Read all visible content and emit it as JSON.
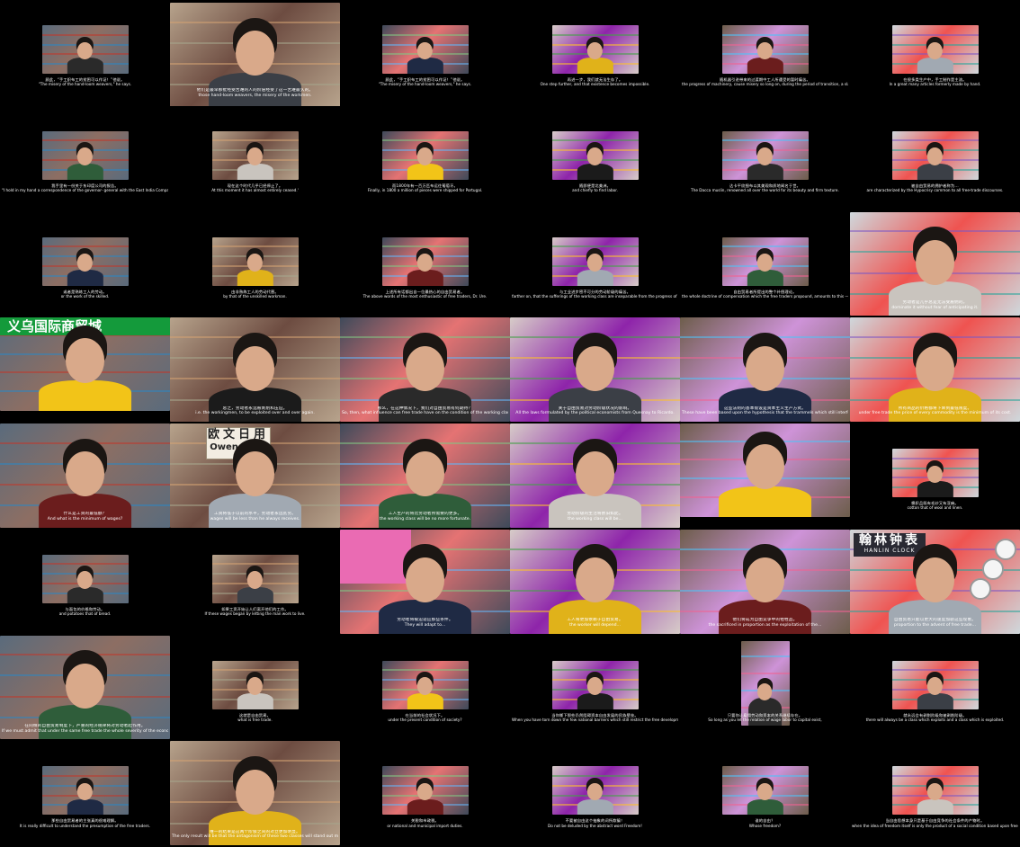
{
  "title": "",
  "cells": [
    {
      "zh": "顾此，“手工织布工的贫困可以作证！”他说。",
      "en": "\"The misery of the hand-loom weavers,\" he says."
    },
    {
      "zh": "他们是最早那批经受苦难的人的阶层经受了这一苦难最久的。",
      "en": "those hand-loom weavers, the misery of the workmen."
    },
    {
      "zh": "顾此，“手工织布工的贫困可以作证！”他说。",
      "en": "\"The misery of the hand-loom weavers,\" he says."
    },
    {
      "zh": "再进一步，我们就无法生存了。",
      "en": "One step further, and that existence becomes impossible."
    },
    {
      "zh": "随机器引进带来的过渡期中工人所遭受的暂时痛苦。",
      "en": "the progress of machinery, cause misery so long on, during the period of transition, a slave of temporary suffering."
    },
    {
      "zh": "在很多类生产中，手工制作是主流。",
      "en": "In a great many articles formerly made by hand."
    },
    {
      "zh": "我手里有一份关于东印度公司的报告。",
      "en": "\"I hold in my hand a correspondence of the governor- general with the East India Company."
    },
    {
      "zh": "现在这个时代几乎已经停止了。",
      "en": "At this moment it has almost entirely ceased.'"
    },
    {
      "zh": "而1800年有一百万匹布运往葡萄牙。",
      "en": "Finally, in 1800 a million of pieces were shipped for Portugal."
    },
    {
      "zh": "随即便是北美洲。",
      "en": "and chiefly to find labor."
    },
    {
      "zh": "达卡平纹细布以其美观和质地闻名于世。",
      "en": "The Dacca muslin, renowned all over the world for its beauty and firm texture."
    },
    {
      "zh": "被自由贸易的拥护者称为...",
      "en": "are characterized by the Hypocrisy common to all free-trade discourses."
    },
    {
      "zh": "或者是熟练工人的劳动。",
      "en": "or the work of the skilled."
    },
    {
      "zh": "由非熟练工人的劳动代替。",
      "en": "by that of the unskilled workman."
    },
    {
      "zh": "上述所有话都出自一位最热心的自由贸易者。",
      "en": "The above words of the most enthusiastic of free traders, Dr. Ure."
    },
    {
      "zh": "与工业进步密不可分的劳动阶级的痛苦。",
      "en": "farther on, that the sufferings of the working class are inseparable from the progress of industry."
    },
    {
      "zh": "自由贸易者所提出的整个补偿理论。",
      "en": "the whole doctrine of compensation which the free traders propound, amounts to this —"
    },
    {
      "zh": "劳动者是几乎总是无法受雇佣的。",
      "en": "dominate it without fear of anticipating it."
    },
    {
      "zh": "",
      "en": ""
    },
    {
      "zh": "总之，劳动者永远被剥削和压迫。",
      "en": "i.e. the workingmen, to be exploited over and over again."
    },
    {
      "zh": "那么，在这种情况下，我们对自由贸易有何期待？",
      "en": "So, then, what influence can free trade have on the condition of the working class?"
    },
    {
      "zh": "关于自由贸易对劳动阶级状况的影响。",
      "en": "All the laws formulated by the political economists from Quesnay to Ricardo."
    },
    {
      "zh": "这些法则的基本假设是资本主义生产方式。",
      "en": "These have been based upon the hypothesis that the trammels which still interfere with commercial freedom have disappeared."
    },
    {
      "zh": "所有商品的价格都将下降到最低限度。",
      "en": "under free trade the price of every commodity is the minimum of its cost."
    },
    {
      "zh": "什么是工资的最低额？",
      "en": "And what is the minimum of wages?"
    },
    {
      "zh": "工资将低于以前的水平，劳动者永远贫穷。",
      "en": "wages will be less than he always receives."
    },
    {
      "zh": "工人生产的将比劳动者所需要的更多。",
      "en": "the working class will be no more fortunate."
    },
    {
      "zh": "劳动阶级的生活将依旧如此。",
      "en": "the working class will be..."
    },
    {
      "zh": "",
      "en": ""
    },
    {
      "zh": "棉织品既有毛纱又有亚麻。",
      "en": "cotton that of wool and linen."
    },
    {
      "zh": "与面包的价格和劳动。",
      "en": "and potatoes that of bread."
    },
    {
      "zh": "如果工资开始让人们离开他们的工作。",
      "en": "If these wages began by letting the man work to live."
    },
    {
      "zh": "劳动者将被迫适应那些条件。",
      "en": "They will adapt to..."
    },
    {
      "zh": "工人将更加依赖于自由贸易。",
      "en": "the worker will depend..."
    },
    {
      "zh": "他们将成为自由竞争中的牺牲品。",
      "en": "the sacrificed in proportion as the exploitation of the..."
    },
    {
      "zh": "自由贸易只能以更大的速度加剧这些现象。",
      "en": "proportion to the advent of free trade..."
    },
    {
      "zh": "在同样的自由贸易制度下，严重的经济规律将对劳动者起作用。",
      "en": "If we must admit that under the same free trade the whole severity of the economic laws will fall upon the workers."
    },
    {
      "zh": "这就是自由贸易。",
      "en": "what is free trade."
    },
    {
      "zh": "在当前的社会状况下。",
      "en": "under the present condition of society?"
    },
    {
      "zh": "当你撕下那些仍然阻碍资本自由发展的民族壁垒。",
      "en": "When you have torn down the few national barriers which still restrict the free development of capital,"
    },
    {
      "zh": "只要你让雇佣劳动和资本的关系继续存在。",
      "en": "So long as you let the relation of wage labor to capital exist,"
    },
    {
      "zh": "就永远会有剥削阶级和被剥削阶级。",
      "en": "there will always be a class which exploits and a class which is exploited."
    },
    {
      "zh": "那些自由贸易者的主张真的很难理解。",
      "en": "It is really difficult to understand the presumption of the free traders."
    },
    {
      "zh": "唯一的结果是这两个阶级之间的对立更加明显。",
      "en": "The only result will be that the antagonism of these two classes will stand out more clearly."
    },
    {
      "zh": "关税和市政税。",
      "en": "or national and municipal import duties."
    },
    {
      "zh": "不要被自由这个抽象的词所欺骗！",
      "en": "Do not be deluded by the abstract word Freedom!"
    },
    {
      "zh": "谁的自由？",
      "en": "Whose freedom?"
    },
    {
      "zh": "当自由思想本身只是基于自由竞争的社会条件的产物时。",
      "en": "when the idea of freedom itself is only the product of a social condition based upon free competition?"
    }
  ],
  "banner_text": "义乌国际商贸城",
  "shop_sign": {
    "l1": "欧文日用",
    "l2": "Owen Daily"
  },
  "clock_sign": {
    "l1": "翰林钟表",
    "l2": "HANLIN CLOCK"
  },
  "colors": {
    "background": "#000000",
    "subtitle": "#ffffff",
    "banner": "#149a3b"
  }
}
